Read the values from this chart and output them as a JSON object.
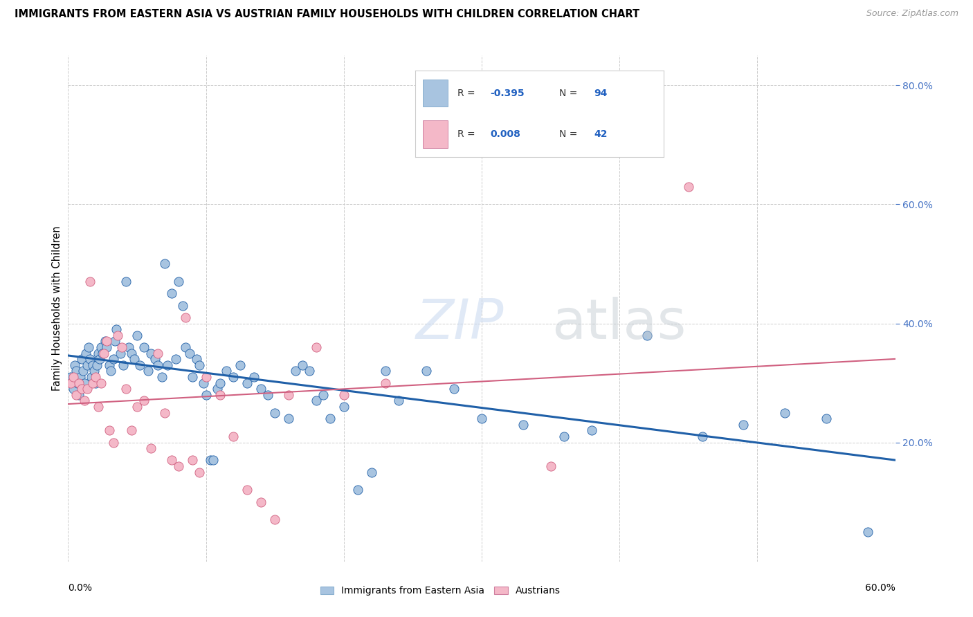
{
  "title": "IMMIGRANTS FROM EASTERN ASIA VS AUSTRIAN FAMILY HOUSEHOLDS WITH CHILDREN CORRELATION CHART",
  "source": "Source: ZipAtlas.com",
  "ylabel": "Family Households with Children",
  "legend_labels": [
    "Immigrants from Eastern Asia",
    "Austrians"
  ],
  "r_blue": -0.395,
  "n_blue": 94,
  "r_pink": 0.008,
  "n_pink": 42,
  "color_blue": "#a8c4e0",
  "color_blue_line": "#2060a8",
  "color_pink": "#f4b8c8",
  "color_pink_line": "#d06080",
  "background_color": "#ffffff",
  "grid_color": "#cccccc",
  "xlim": [
    0.0,
    0.6
  ],
  "ylim": [
    0.0,
    0.85
  ],
  "blue_dots_x": [
    0.002,
    0.003,
    0.004,
    0.005,
    0.006,
    0.007,
    0.008,
    0.009,
    0.01,
    0.011,
    0.012,
    0.013,
    0.014,
    0.015,
    0.016,
    0.017,
    0.018,
    0.019,
    0.02,
    0.021,
    0.022,
    0.023,
    0.024,
    0.025,
    0.027,
    0.028,
    0.03,
    0.031,
    0.033,
    0.034,
    0.035,
    0.038,
    0.04,
    0.042,
    0.044,
    0.046,
    0.048,
    0.05,
    0.052,
    0.055,
    0.058,
    0.06,
    0.063,
    0.065,
    0.068,
    0.07,
    0.072,
    0.075,
    0.078,
    0.08,
    0.083,
    0.085,
    0.088,
    0.09,
    0.093,
    0.095,
    0.098,
    0.1,
    0.103,
    0.105,
    0.108,
    0.11,
    0.115,
    0.12,
    0.125,
    0.13,
    0.135,
    0.14,
    0.145,
    0.15,
    0.16,
    0.165,
    0.17,
    0.175,
    0.18,
    0.185,
    0.19,
    0.2,
    0.21,
    0.22,
    0.23,
    0.24,
    0.26,
    0.28,
    0.3,
    0.33,
    0.36,
    0.38,
    0.42,
    0.46,
    0.49,
    0.52,
    0.55,
    0.58
  ],
  "blue_dots_y": [
    0.31,
    0.3,
    0.29,
    0.33,
    0.32,
    0.3,
    0.28,
    0.31,
    0.34,
    0.32,
    0.3,
    0.35,
    0.33,
    0.36,
    0.34,
    0.31,
    0.33,
    0.32,
    0.3,
    0.33,
    0.35,
    0.34,
    0.36,
    0.35,
    0.37,
    0.36,
    0.33,
    0.32,
    0.34,
    0.37,
    0.39,
    0.35,
    0.33,
    0.47,
    0.36,
    0.35,
    0.34,
    0.38,
    0.33,
    0.36,
    0.32,
    0.35,
    0.34,
    0.33,
    0.31,
    0.5,
    0.33,
    0.45,
    0.34,
    0.47,
    0.43,
    0.36,
    0.35,
    0.31,
    0.34,
    0.33,
    0.3,
    0.28,
    0.17,
    0.17,
    0.29,
    0.3,
    0.32,
    0.31,
    0.33,
    0.3,
    0.31,
    0.29,
    0.28,
    0.25,
    0.24,
    0.32,
    0.33,
    0.32,
    0.27,
    0.28,
    0.24,
    0.26,
    0.12,
    0.15,
    0.32,
    0.27,
    0.32,
    0.29,
    0.24,
    0.23,
    0.21,
    0.22,
    0.38,
    0.21,
    0.23,
    0.25,
    0.24,
    0.05
  ],
  "pink_dots_x": [
    0.002,
    0.004,
    0.006,
    0.008,
    0.01,
    0.012,
    0.014,
    0.016,
    0.018,
    0.02,
    0.022,
    0.024,
    0.026,
    0.028,
    0.03,
    0.033,
    0.036,
    0.039,
    0.042,
    0.046,
    0.05,
    0.055,
    0.06,
    0.065,
    0.07,
    0.075,
    0.08,
    0.085,
    0.09,
    0.095,
    0.1,
    0.11,
    0.12,
    0.13,
    0.14,
    0.15,
    0.16,
    0.18,
    0.2,
    0.23,
    0.35,
    0.45
  ],
  "pink_dots_y": [
    0.3,
    0.31,
    0.28,
    0.3,
    0.29,
    0.27,
    0.29,
    0.47,
    0.3,
    0.31,
    0.26,
    0.3,
    0.35,
    0.37,
    0.22,
    0.2,
    0.38,
    0.36,
    0.29,
    0.22,
    0.26,
    0.27,
    0.19,
    0.35,
    0.25,
    0.17,
    0.16,
    0.41,
    0.17,
    0.15,
    0.31,
    0.28,
    0.21,
    0.12,
    0.1,
    0.07,
    0.28,
    0.36,
    0.28,
    0.3,
    0.16,
    0.63
  ]
}
